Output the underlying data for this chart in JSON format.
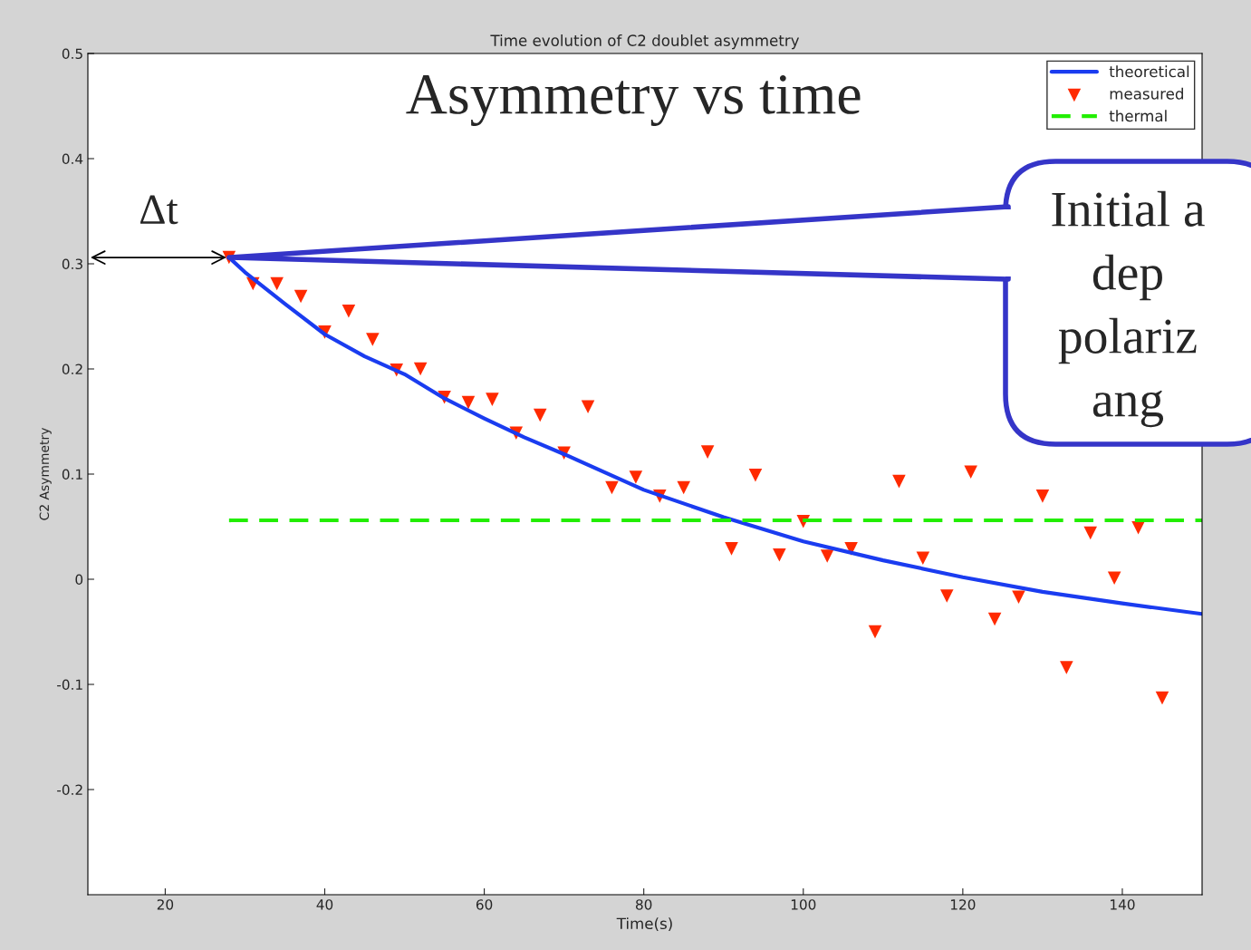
{
  "chart_data": {
    "type": "line",
    "title": "Time evolution of C2 doublet asymmetry",
    "xlabel": "Time(s)",
    "ylabel": "C2 Asymmetry",
    "xlim": [
      10.3,
      150
    ],
    "xticks": [
      20,
      40,
      60,
      80,
      100,
      120,
      140
    ],
    "ylim": [
      -0.3,
      0.5
    ],
    "yticks": [
      -0.2,
      -0.1,
      0,
      0.1,
      0.2,
      0.3,
      0.4,
      0.5
    ],
    "legend": "top right",
    "series": [
      {
        "name": "theoretical",
        "type": "line",
        "color": "#1a3cf0",
        "marker": "none",
        "line_style": "solid",
        "x": [
          28,
          30,
          35,
          40,
          45,
          50,
          55,
          60,
          65,
          70,
          80,
          90,
          100,
          110,
          120,
          130,
          140,
          150
        ],
        "values": [
          0.306,
          0.292,
          0.262,
          0.233,
          0.212,
          0.195,
          0.172,
          0.153,
          0.135,
          0.119,
          0.085,
          0.059,
          0.036,
          0.018,
          0.002,
          -0.012,
          -0.023,
          -0.033
        ]
      },
      {
        "name": "measured",
        "type": "scatter",
        "color": "#ff2a00",
        "marker": "triangle",
        "x": [
          28,
          31,
          34,
          37,
          40,
          43,
          46,
          49,
          52,
          55,
          58,
          61,
          64,
          67,
          70,
          73,
          76,
          79,
          82,
          85,
          88,
          91,
          94,
          97,
          100,
          103,
          106,
          109,
          112,
          115,
          118,
          121,
          124,
          127,
          130,
          133,
          136,
          139,
          142,
          145
        ],
        "values": [
          0.306,
          0.281,
          0.281,
          0.269,
          0.235,
          0.255,
          0.228,
          0.199,
          0.2,
          0.173,
          0.168,
          0.171,
          0.139,
          0.156,
          0.12,
          0.164,
          0.087,
          0.097,
          0.079,
          0.087,
          0.121,
          0.029,
          0.099,
          0.023,
          0.055,
          0.022,
          0.029,
          -0.05,
          0.093,
          0.02,
          -0.016,
          0.102,
          -0.038,
          -0.017,
          0.079,
          -0.084,
          0.044,
          0.001,
          0.049,
          -0.113
        ]
      },
      {
        "name": "thermal",
        "type": "line",
        "color": "#22ee00",
        "marker": "none",
        "line_style": "dashed",
        "x": [
          28,
          150
        ],
        "values": [
          0.056,
          0.056
        ]
      }
    ],
    "annotations": [
      "Asymmetry vs time",
      {
        "text": "Δt",
        "x": 28,
        "y": 0.306
      },
      {
        "text": "Initial a\ndep\npolariz\nang",
        "x": 28,
        "y": 0.306
      }
    ]
  }
}
